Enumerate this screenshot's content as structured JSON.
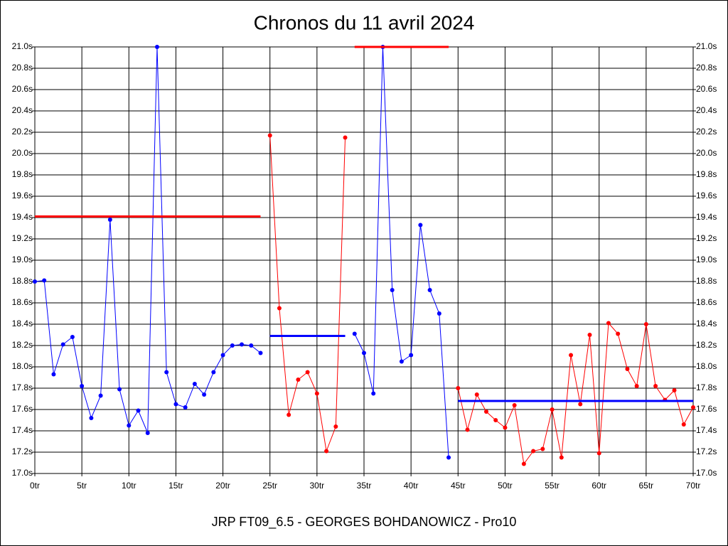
{
  "chart_data": {
    "type": "line",
    "title": "Chronos du 11 avril 2024",
    "footer": "JRP FT09_6.5 - GEORGES BOHDANOWICZ - Pro10",
    "xlim": [
      0,
      70
    ],
    "ylim": [
      17.0,
      21.0
    ],
    "grid": true,
    "xticks": [
      {
        "value": 0,
        "label": "0tr"
      },
      {
        "value": 5,
        "label": "5tr"
      },
      {
        "value": 10,
        "label": "10tr"
      },
      {
        "value": 15,
        "label": "15tr"
      },
      {
        "value": 20,
        "label": "20tr"
      },
      {
        "value": 25,
        "label": "25tr"
      },
      {
        "value": 30,
        "label": "30tr"
      },
      {
        "value": 35,
        "label": "35tr"
      },
      {
        "value": 40,
        "label": "40tr"
      },
      {
        "value": 45,
        "label": "45tr"
      },
      {
        "value": 50,
        "label": "50tr"
      },
      {
        "value": 55,
        "label": "55tr"
      },
      {
        "value": 60,
        "label": "60tr"
      },
      {
        "value": 65,
        "label": "65tr"
      },
      {
        "value": 70,
        "label": "70tr"
      }
    ],
    "yticks": [
      {
        "value": 17.0,
        "label": "17.0s"
      },
      {
        "value": 17.2,
        "label": "17.2s"
      },
      {
        "value": 17.4,
        "label": "17.4s"
      },
      {
        "value": 17.6,
        "label": "17.6s"
      },
      {
        "value": 17.8,
        "label": "17.8s"
      },
      {
        "value": 18.0,
        "label": "18.0s"
      },
      {
        "value": 18.2,
        "label": "18.2s"
      },
      {
        "value": 18.4,
        "label": "18.4s"
      },
      {
        "value": 18.6,
        "label": "18.6s"
      },
      {
        "value": 18.8,
        "label": "18.8s"
      },
      {
        "value": 19.0,
        "label": "19.0s"
      },
      {
        "value": 19.2,
        "label": "19.2s"
      },
      {
        "value": 19.4,
        "label": "19.4s"
      },
      {
        "value": 19.6,
        "label": "19.6s"
      },
      {
        "value": 19.8,
        "label": "19.8s"
      },
      {
        "value": 20.0,
        "label": "20.0s"
      },
      {
        "value": 20.2,
        "label": "20.2s"
      },
      {
        "value": 20.4,
        "label": "20.4s"
      },
      {
        "value": 20.6,
        "label": "20.6s"
      },
      {
        "value": 20.8,
        "label": "20.8s"
      },
      {
        "value": 21.0,
        "label": "21.0s"
      }
    ],
    "series": [
      {
        "color": "#0000ff",
        "x": [
          0,
          1,
          2,
          3,
          4,
          5,
          6,
          7,
          8,
          9,
          10,
          11,
          12,
          13,
          14,
          15,
          16,
          17,
          18,
          19,
          20,
          21,
          22,
          23,
          24
        ],
        "values": [
          18.8,
          18.81,
          17.93,
          18.21,
          18.28,
          17.82,
          17.52,
          17.73,
          19.38,
          17.79,
          17.45,
          17.59,
          17.38,
          21.0,
          17.95,
          17.65,
          17.62,
          17.84,
          17.74,
          17.95,
          18.11,
          18.2,
          18.21,
          18.2,
          18.13
        ]
      },
      {
        "color": "#ff0000",
        "x": [
          25,
          26,
          27,
          28,
          29,
          30,
          31,
          32,
          33
        ],
        "values": [
          20.17,
          18.55,
          17.55,
          17.88,
          17.95,
          17.75,
          17.21,
          17.44,
          20.15
        ]
      },
      {
        "color": "#0000ff",
        "x": [
          34,
          35,
          36,
          37,
          38,
          39,
          40,
          41,
          42,
          43,
          44
        ],
        "values": [
          18.31,
          18.13,
          17.75,
          21.0,
          18.72,
          18.05,
          18.11,
          19.33,
          18.72,
          18.5,
          17.15
        ]
      },
      {
        "color": "#ff0000",
        "x": [
          45,
          46,
          47,
          48,
          49,
          50,
          51,
          52,
          53,
          54,
          55,
          56,
          57,
          58,
          59,
          60,
          61,
          62,
          63,
          64,
          65,
          66,
          67,
          68,
          69,
          70
        ],
        "values": [
          17.8,
          17.41,
          17.74,
          17.58,
          17.5,
          17.43,
          17.64,
          17.09,
          17.21,
          17.23,
          17.6,
          17.15,
          18.11,
          17.65,
          18.3,
          17.19,
          18.41,
          18.31,
          17.98,
          17.82,
          18.4,
          17.82,
          17.69,
          17.78,
          17.46,
          17.62
        ]
      }
    ],
    "average_lines": [
      {
        "color": "#ff0000",
        "x": [
          0,
          24
        ],
        "value": 19.41
      },
      {
        "color": "#0000ff",
        "x": [
          25,
          33
        ],
        "value": 18.29
      },
      {
        "color": "#ff0000",
        "x": [
          34,
          44
        ],
        "value": 21.0
      },
      {
        "color": "#0000ff",
        "x": [
          45,
          70
        ],
        "value": 17.68
      }
    ]
  }
}
